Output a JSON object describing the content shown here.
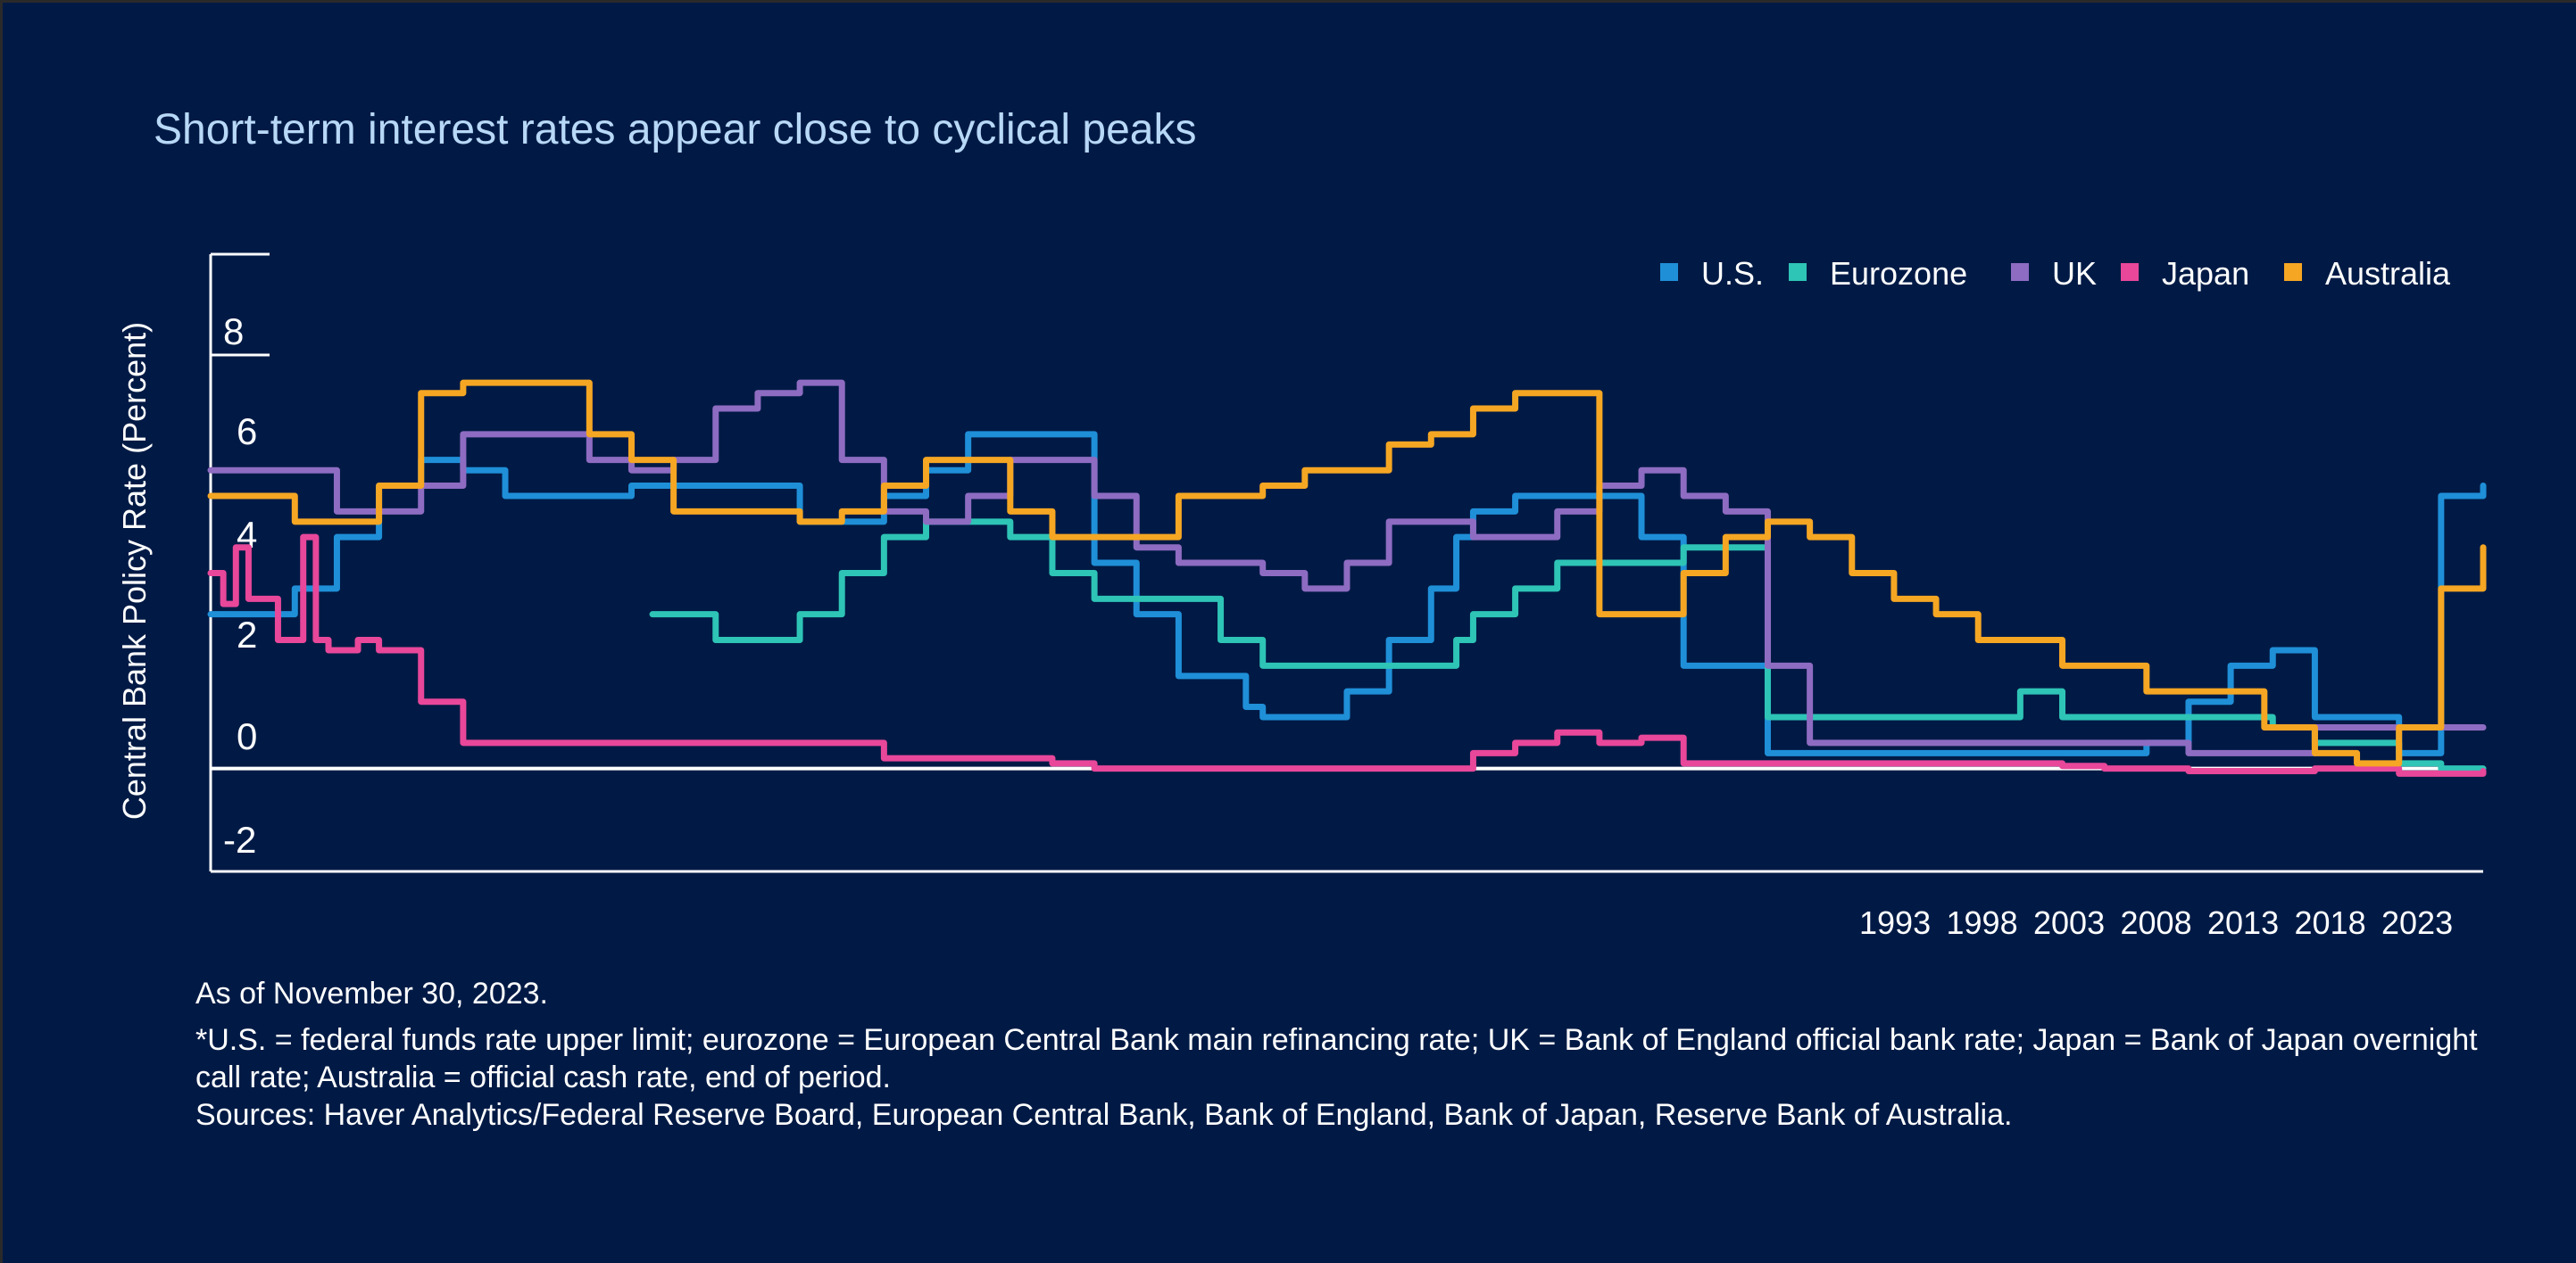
{
  "chart_data": {
    "type": "line",
    "title": "Short-term interest rates appear close to cyclical peaks",
    "ylabel": "Central Bank Policy Rate (Percent)",
    "xlabel": "",
    "ylim": [
      -2,
      10
    ],
    "yticks": [
      -2,
      0,
      2,
      4,
      6,
      8
    ],
    "xlim": [
      1970,
      2024
    ],
    "xtick_labels": [
      "1993",
      "1998",
      "2003",
      "2008",
      "2013",
      "2018",
      "2023"
    ],
    "legend_position": "top-right",
    "grid": false,
    "series": [
      {
        "name": "U.S.",
        "color": "#1f8fd8",
        "x": [
          1970,
          1971.6,
          1972,
          1973,
          1974,
          1975,
          1976,
          1977,
          1979,
          1980,
          1983,
          1984,
          1985,
          1986,
          1987,
          1988,
          1990,
          1991,
          1992,
          1993,
          1994,
          1994.6,
          1995,
          1996,
          1997,
          1998,
          1999,
          1999.6,
          2000,
          2001,
          2002,
          2003,
          2004,
          2005,
          2006,
          2007,
          2007.6,
          2008,
          2009,
          2015,
          2016,
          2017,
          2018,
          2019,
          2020,
          2022,
          2023,
          2024
        ],
        "values": [
          3,
          3,
          3.5,
          4.5,
          5.5,
          6,
          5.8,
          5.3,
          5.3,
          5.5,
          5.5,
          4.8,
          4.8,
          5.3,
          5.8,
          6.5,
          6.5,
          4,
          3,
          1.8,
          1.8,
          1.2,
          1,
          1,
          1.5,
          2.5,
          3.5,
          4.5,
          5,
          5.3,
          5.3,
          5.3,
          4.5,
          2,
          2,
          0.3,
          0.3,
          0.3,
          0.3,
          0.3,
          0.5,
          1.3,
          2,
          2.3,
          1,
          0.3,
          5.3,
          5.5
        ]
      },
      {
        "name": "Eurozone",
        "color": "#2ec4b6",
        "x": [
          1980.5,
          1981,
          1982,
          1983,
          1984,
          1985,
          1986,
          1987,
          1988,
          1989,
          1990,
          1991,
          1992,
          1993,
          1994,
          1995,
          1996,
          1997,
          1998,
          1999,
          1999.6,
          2000,
          2001,
          2002,
          2003,
          2004,
          2005,
          2006,
          2007,
          2008,
          2009,
          2012,
          2013,
          2014,
          2018,
          2019,
          2020,
          2022,
          2023,
          2024
        ],
        "values": [
          3,
          3,
          2.5,
          2.5,
          3,
          3.8,
          4.5,
          4.8,
          4.8,
          4.5,
          3.8,
          3.3,
          3.3,
          3.3,
          2.5,
          2,
          2,
          2,
          2,
          2,
          2.5,
          3,
          3.5,
          4,
          4,
          4,
          4.3,
          4.3,
          1,
          1,
          1,
          1,
          1.5,
          1,
          1,
          0.8,
          0.5,
          0.1,
          0,
          0
        ]
      },
      {
        "name": "UK",
        "color": "#8e6cc2",
        "x": [
          1970,
          1972,
          1973,
          1974,
          1975,
          1976,
          1977,
          1978,
          1979,
          1980,
          1981,
          1982,
          1983,
          1984,
          1985,
          1986,
          1987,
          1988,
          1989,
          1990,
          1991,
          1992,
          1993,
          1994,
          1995,
          1996,
          1997,
          1998,
          1999,
          2000,
          2001,
          2002,
          2003,
          2004,
          2005,
          2006,
          2007,
          2008,
          2009,
          2016,
          2017,
          2019,
          2020,
          2022,
          2023,
          2024
        ],
        "values": [
          5.8,
          5.8,
          5,
          5,
          5.5,
          6.5,
          6.5,
          6.5,
          6,
          5.8,
          6,
          7,
          7.3,
          7.5,
          6,
          5,
          4.8,
          5.3,
          6,
          6,
          5.3,
          4.3,
          4,
          4,
          3.8,
          3.5,
          4,
          4.8,
          4.8,
          4.5,
          4.5,
          5,
          5.5,
          5.8,
          5.3,
          5,
          2,
          0.5,
          0.5,
          0.5,
          0.3,
          0.3,
          0.8,
          0.8,
          0.8,
          0.8
        ]
      },
      {
        "name": "Japan",
        "color": "#e8479a",
        "x": [
          1970,
          1970.3,
          1970.6,
          1970.9,
          1971.2,
          1971.6,
          1972,
          1972.2,
          1972.5,
          1972.8,
          1973,
          1973.5,
          1974,
          1975,
          1976,
          1977,
          1978,
          1979,
          1980,
          1981,
          1982,
          1983,
          1984,
          1985,
          1986,
          1987,
          1988,
          1990,
          1991,
          1992,
          1993,
          1994,
          1995,
          1996,
          1997,
          1998,
          1999,
          2000,
          2001,
          2002,
          2003,
          2004,
          2005,
          2006,
          2008,
          2013,
          2014,
          2015,
          2016,
          2017,
          2018,
          2019,
          2020,
          2021,
          2022,
          2023,
          2024
        ],
        "values": [
          3.8,
          3.2,
          4.3,
          3.3,
          3.3,
          2.5,
          2.5,
          4.5,
          2.5,
          2.3,
          2.3,
          2.5,
          2.3,
          1.3,
          0.5,
          0.5,
          0.5,
          0.5,
          0.5,
          0.5,
          0.5,
          0.5,
          0.5,
          0.5,
          0.2,
          0.2,
          0.2,
          0.1,
          0,
          0,
          0,
          0,
          0,
          0,
          0,
          0,
          0,
          0.3,
          0.5,
          0.7,
          0.5,
          0.6,
          0.1,
          0.1,
          0.1,
          0.1,
          0.05,
          0,
          0,
          -0.05,
          -0.05,
          -0.05,
          0,
          0,
          -0.1,
          -0.1,
          -0.05
        ]
      },
      {
        "name": "Australia",
        "color": "#f5a623",
        "x": [
          1970,
          1971,
          1972,
          1973,
          1974,
          1975,
          1976,
          1977,
          1978,
          1979,
          1980,
          1981,
          1982,
          1983,
          1984,
          1985,
          1986,
          1987,
          1988,
          1989,
          1990,
          1991,
          1992,
          1993,
          1994,
          1995,
          1996,
          1997,
          1998,
          1999,
          2000,
          2001,
          2002,
          2003,
          2004,
          2005,
          2006,
          2007,
          2008,
          2009,
          2010,
          2011,
          2012,
          2013,
          2014,
          2015,
          2016,
          2017,
          2018,
          2018.8,
          2019,
          2020,
          2021,
          2022,
          2023,
          2024
        ],
        "values": [
          5.3,
          5.3,
          4.8,
          4.8,
          5.5,
          7.3,
          7.5,
          7.5,
          7.5,
          6.5,
          6,
          5,
          5,
          5,
          4.8,
          5,
          5.5,
          6,
          6,
          5,
          4.5,
          4.5,
          4.5,
          5.3,
          5.3,
          5.5,
          5.8,
          5.8,
          6.3,
          6.5,
          7,
          7.3,
          7.3,
          3,
          3,
          3.8,
          4.5,
          4.8,
          4.5,
          3.8,
          3.3,
          3,
          2.5,
          2.5,
          2,
          2,
          1.5,
          1.5,
          1.5,
          0.8,
          0.8,
          0.3,
          0.1,
          0.8,
          3.5,
          4.3
        ]
      }
    ]
  },
  "footnotes": {
    "as_of": "As of November 30, 2023.",
    "definition": "*U.S. = federal funds rate upper limit; eurozone = European Central Bank main refinancing rate; UK = Bank of England official bank rate; Japan = Bank of Japan overnight call rate; Australia = official cash rate, end of period.",
    "sources": "Sources: Haver Analytics/Federal Reserve Board, European Central Bank, Bank of England, Bank of Japan, Reserve Bank of Australia."
  },
  "colors": {
    "background": "#011a45",
    "title": "#b8d8f7",
    "text": "#ffffff"
  }
}
